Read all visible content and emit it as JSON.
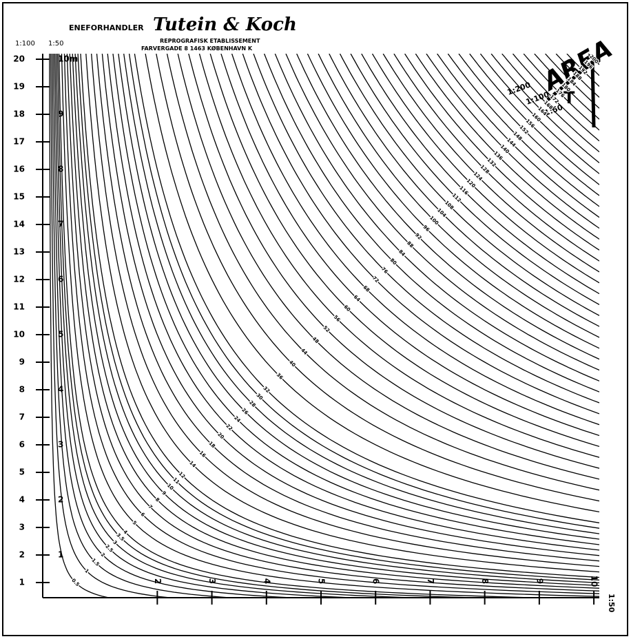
{
  "header": {
    "prefix": "ENEFORHANDLER",
    "brand": "Tutein & Koch",
    "line1": "REPROGRAFISK ETABLISSEMENT",
    "line2": "FARVERGADE 8    1463 KØBENHAVN K"
  },
  "logo": {
    "word": "AREA",
    "letter": "T"
  },
  "scales": {
    "left_outer": "1:100",
    "left_inner": "1:50",
    "top_right": [
      "1:200",
      "1:100",
      "1:50"
    ],
    "bottom_right": "1:50"
  },
  "nomogram": {
    "xlim": [
      -0.1,
      10.1
    ],
    "ylim": [
      0.45,
      20.2
    ],
    "yticks": [
      1,
      2,
      3,
      4,
      5,
      6,
      7,
      8,
      9,
      10,
      11,
      12,
      13,
      14,
      15,
      16,
      17,
      18,
      19,
      20
    ],
    "y2ticks": [
      1,
      2,
      3,
      4,
      5,
      6,
      7,
      8,
      9,
      {
        "value": 10,
        "label": "10m"
      }
    ],
    "y2lim": [
      0.225,
      10.1
    ],
    "xticks": [
      2,
      3,
      4,
      5,
      6,
      7,
      8,
      9,
      10
    ],
    "curves": [
      0.5,
      1,
      1.5,
      2,
      2.5,
      3,
      3.5,
      4,
      5,
      6,
      7,
      8,
      9,
      10,
      11,
      12,
      14,
      16,
      18,
      20,
      22,
      24,
      26,
      28,
      30,
      32,
      36,
      40,
      44,
      48,
      52,
      56,
      60,
      64,
      68,
      72,
      76,
      80,
      84,
      88,
      92,
      96,
      100,
      104,
      108,
      112,
      116,
      120,
      124,
      128,
      132,
      136,
      140,
      144,
      148,
      152,
      156,
      160,
      164,
      168,
      172,
      176,
      180,
      184,
      188,
      192,
      196,
      200
    ]
  }
}
